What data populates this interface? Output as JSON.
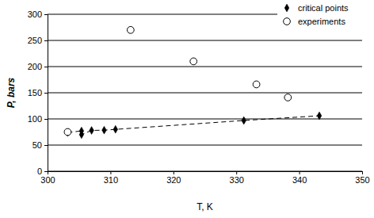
{
  "chart_data": {
    "type": "scatter",
    "x_label": "T,  K",
    "y_label": "P, bars",
    "xlim": [
      300,
      350
    ],
    "xticks": [
      300,
      310,
      320,
      330,
      340,
      350
    ],
    "ylim": [
      0,
      300
    ],
    "yticks": [
      0,
      50,
      100,
      150,
      200,
      250,
      300
    ],
    "grid": true,
    "legend": "top-right",
    "series": [
      {
        "name": "critical points",
        "color": "#000000",
        "marker": "diamond",
        "line_style": "dashed",
        "x": [
          303.2,
          305.4,
          305.4,
          307.0,
          309.0,
          310.8,
          331.2,
          343.2
        ],
        "values": [
          74,
          77,
          70,
          78,
          78.5,
          80,
          97,
          106
        ]
      },
      {
        "name": "experiments",
        "color": "#000000",
        "marker": "circle-open",
        "line_style": "none",
        "x": [
          303.2,
          313.2,
          323.2,
          333.2,
          338.2
        ],
        "values": [
          75,
          270,
          210,
          166,
          141
        ]
      }
    ]
  }
}
